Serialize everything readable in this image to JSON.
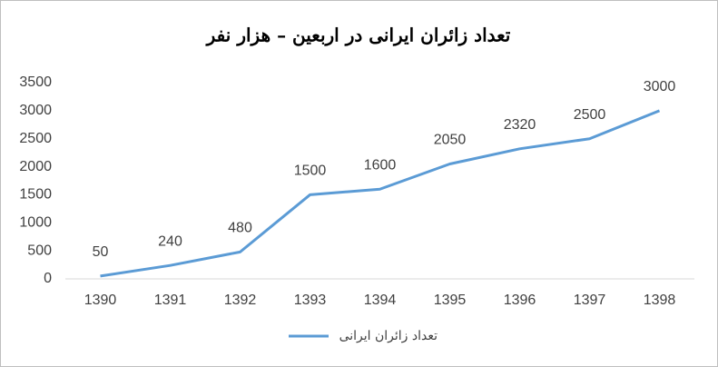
{
  "chart_data": {
    "type": "line",
    "title": "تعداد زائران ایرانی در اربعین – هزار نفر",
    "categories": [
      "1390",
      "1391",
      "1392",
      "1393",
      "1394",
      "1395",
      "1396",
      "1397",
      "1398"
    ],
    "series": [
      {
        "name": "تعداد زائران ایرانی",
        "color": "#5b9bd5",
        "values": [
          50,
          240,
          480,
          1500,
          1600,
          2050,
          2320,
          2500,
          3000
        ]
      }
    ],
    "ylim": [
      0,
      3500
    ],
    "yticks": [
      0,
      500,
      1000,
      1500,
      2000,
      2500,
      3000,
      3500
    ],
    "grid": false,
    "legend": "bottom"
  }
}
